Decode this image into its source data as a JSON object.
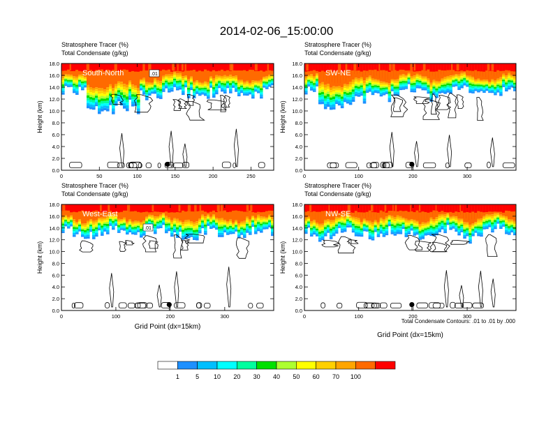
{
  "title": "2014-02-06_15:00:00",
  "contour_note": "Total Condensate Contours: .01 to .01 by .000",
  "colorbar": {
    "labels": [
      "1",
      "5",
      "10",
      "20",
      "30",
      "40",
      "50",
      "60",
      "70",
      "100"
    ],
    "colors": [
      "#ffffff",
      "#1e90ff",
      "#00bfff",
      "#00ffff",
      "#00ff9f",
      "#00e000",
      "#adff2f",
      "#ffff00",
      "#ffd000",
      "#ffa500",
      "#ff6a00",
      "#ff0000"
    ]
  },
  "chart_data": [
    {
      "type": "heatmap",
      "panel": "South-North",
      "subtitle_line1": "Stratosphere Tracer   (%)",
      "subtitle_line2": "Total Condensate   (g/kg)",
      "ylabel": "Height (km)",
      "xlabel": "",
      "xlim": [
        0,
        280
      ],
      "ylim": [
        0,
        18
      ],
      "x_ticks": [
        0,
        50,
        100,
        150,
        200,
        250
      ],
      "y_ticks": [
        "0.0",
        "2.0",
        "4.0",
        "6.0",
        "8.0",
        "10.0",
        "12.0",
        "14.0",
        "16.0",
        "18.0"
      ],
      "contour_label": ".01",
      "marker_x": 140
    },
    {
      "type": "heatmap",
      "panel": "SW-NE",
      "subtitle_line1": "Stratosphere Tracer   (%)",
      "subtitle_line2": "Total Condensate   (g/kg)",
      "ylabel": "Height (km)",
      "xlabel": "",
      "xlim": [
        0,
        390
      ],
      "ylim": [
        0,
        18
      ],
      "x_ticks": [
        0,
        100,
        200,
        300
      ],
      "y_ticks": [
        "0.0",
        "2.0",
        "4.0",
        "6.0",
        "8.0",
        "10.0",
        "12.0",
        "14.0",
        "16.0",
        "18.0"
      ],
      "contour_label": "",
      "marker_x": 198
    },
    {
      "type": "heatmap",
      "panel": "West-East",
      "subtitle_line1": "Stratosphere Tracer   (%)",
      "subtitle_line2": "Total Condensate   (g/kg)",
      "ylabel": "Height (km)",
      "xlabel": "Grid Point (dx=15km)",
      "xlim": [
        0,
        390
      ],
      "ylim": [
        0,
        18
      ],
      "x_ticks": [
        0,
        100,
        200,
        300
      ],
      "y_ticks": [
        "0.0",
        "2.0",
        "4.0",
        "6.0",
        "8.0",
        "10.0",
        "12.0",
        "14.0",
        "16.0",
        "18.0"
      ],
      "contour_label": ".01",
      "marker_x": 198
    },
    {
      "type": "heatmap",
      "panel": "NW-SE",
      "subtitle_line1": "Stratosphere Tracer   (%)",
      "subtitle_line2": "Total Condensate   (g/kg)",
      "ylabel": "Height (km)",
      "xlabel": "Grid Point (dx=15km)",
      "xlim": [
        0,
        390
      ],
      "ylim": [
        0,
        18
      ],
      "x_ticks": [
        0,
        100,
        200,
        300
      ],
      "y_ticks": [
        "0.0",
        "2.0",
        "4.0",
        "6.0",
        "8.0",
        "10.0",
        "12.0",
        "14.0",
        "16.0",
        "18.0"
      ],
      "contour_label": "",
      "marker_x": 198
    }
  ]
}
